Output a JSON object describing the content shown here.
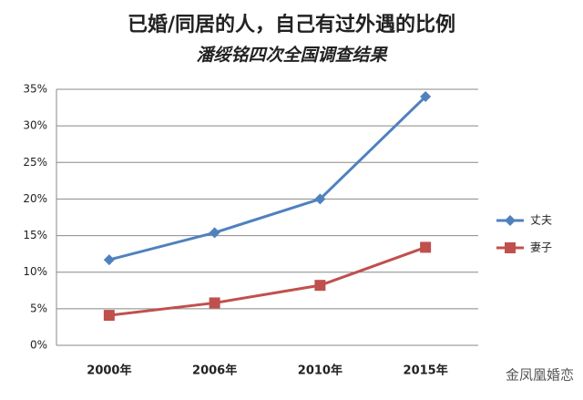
{
  "chart_data": {
    "type": "line",
    "title": "已婚/同居的人，自己有过外遇的比例",
    "subtitle": "潘绥铭四次全国调查结果",
    "categories": [
      "2000年",
      "2006年",
      "2010年",
      "2015年"
    ],
    "series": [
      {
        "name": "丈夫",
        "color": "#4f81bd",
        "marker": "diamond",
        "values": [
          11.7,
          15.4,
          20,
          34
        ]
      },
      {
        "name": "妻子",
        "color": "#c0504d",
        "marker": "square",
        "values": [
          4.1,
          5.8,
          8.2,
          13.4
        ]
      }
    ],
    "ylim": [
      0,
      35
    ],
    "yticks": [
      {
        "value": 0,
        "label": "0%"
      },
      {
        "value": 5,
        "label": "5%"
      },
      {
        "value": 10,
        "label": "10%"
      },
      {
        "value": 15,
        "label": "15%"
      },
      {
        "value": 20,
        "label": "20%"
      },
      {
        "value": 25,
        "label": "25%"
      },
      {
        "value": 30,
        "label": "30%"
      },
      {
        "value": 35,
        "label": "35%"
      }
    ],
    "grid": true,
    "legend": "right",
    "watermark": "金凤凰婚恋"
  }
}
